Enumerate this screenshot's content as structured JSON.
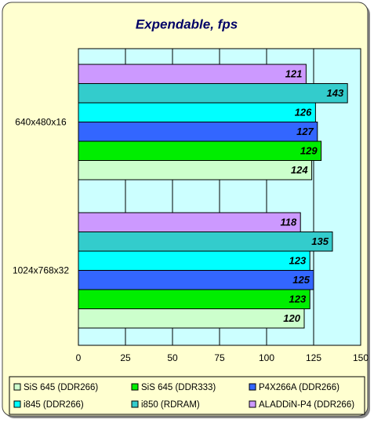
{
  "chart_data": {
    "type": "hbar",
    "title": "Expendable, fps",
    "categories": [
      "640x480x16",
      "1024x768x32"
    ],
    "series": [
      {
        "name": "SiS 645 (DDR266)",
        "color": "#ccffcc",
        "values": [
          124,
          120
        ]
      },
      {
        "name": "SiS 645 (DDR333)",
        "color": "#00ee00",
        "values": [
          129,
          123
        ]
      },
      {
        "name": "P4X266A (DDR266)",
        "color": "#3366ff",
        "values": [
          127,
          125
        ]
      },
      {
        "name": "i845 (DDR266)",
        "color": "#00ffff",
        "values": [
          126,
          123
        ]
      },
      {
        "name": "i850 (RDRAM)",
        "color": "#33cccc",
        "values": [
          143,
          135
        ]
      },
      {
        "name": "ALADDiN-P4 (DDR266)",
        "color": "#cc99ff",
        "values": [
          121,
          118
        ]
      }
    ],
    "xlim": [
      0,
      150
    ],
    "xticks": [
      0,
      25,
      50,
      75,
      100,
      125,
      150
    ],
    "grid": true,
    "legend": "bottom"
  }
}
